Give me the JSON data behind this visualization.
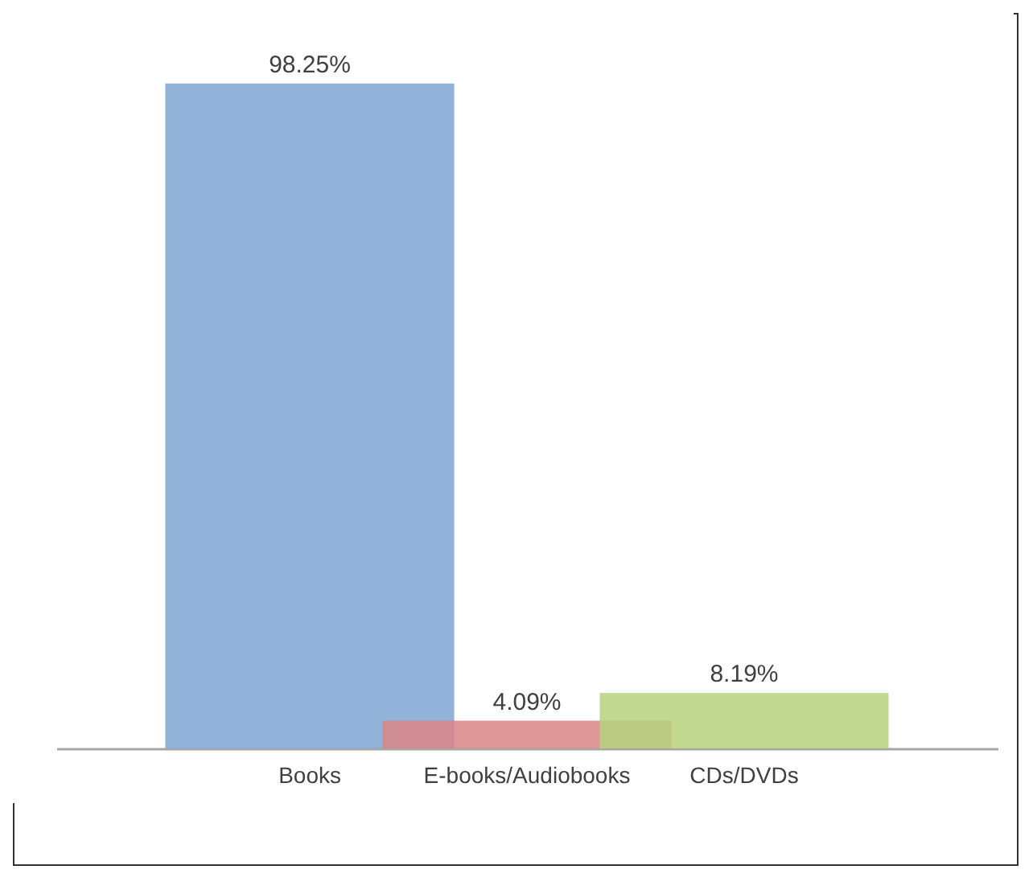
{
  "chart_data": {
    "type": "bar",
    "categories": [
      "Books",
      "E-books/Audiobooks",
      "CDs/DVDs"
    ],
    "values": [
      98.25,
      4.09,
      8.19
    ],
    "colors": [
      "#7ea6d3",
      "#d98585",
      "#b6d27c"
    ],
    "value_labels": [
      "98.25%",
      "4.09%",
      "8.19%"
    ],
    "grid": false,
    "legend": false
  }
}
